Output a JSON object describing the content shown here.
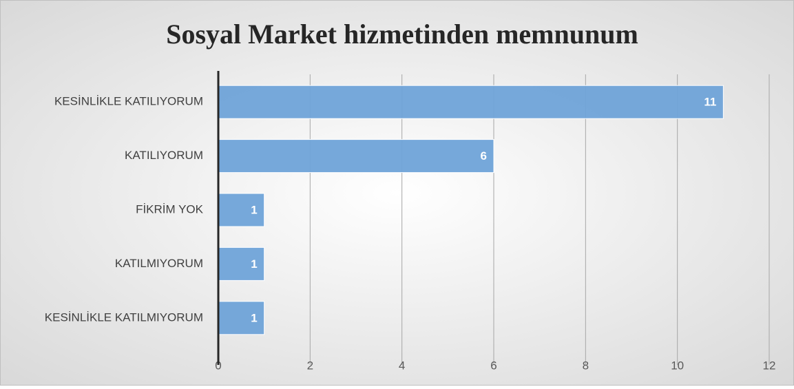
{
  "chart_data": {
    "type": "bar",
    "orientation": "horizontal",
    "title": "Sosyal Market hizmetinden memnunum",
    "categories": [
      "KESİNLİKLE KATILIYORUM",
      "KATILIYORUM",
      "FİKRİM YOK",
      "KATILMIYORUM",
      "KESİNLİKLE KATILMIYORUM"
    ],
    "values": [
      11,
      6,
      1,
      1,
      1
    ],
    "color": "#6fa3d8",
    "xlim": [
      0,
      12
    ],
    "xticks": [
      0,
      2,
      4,
      6,
      8,
      10,
      12
    ],
    "grid": true
  }
}
